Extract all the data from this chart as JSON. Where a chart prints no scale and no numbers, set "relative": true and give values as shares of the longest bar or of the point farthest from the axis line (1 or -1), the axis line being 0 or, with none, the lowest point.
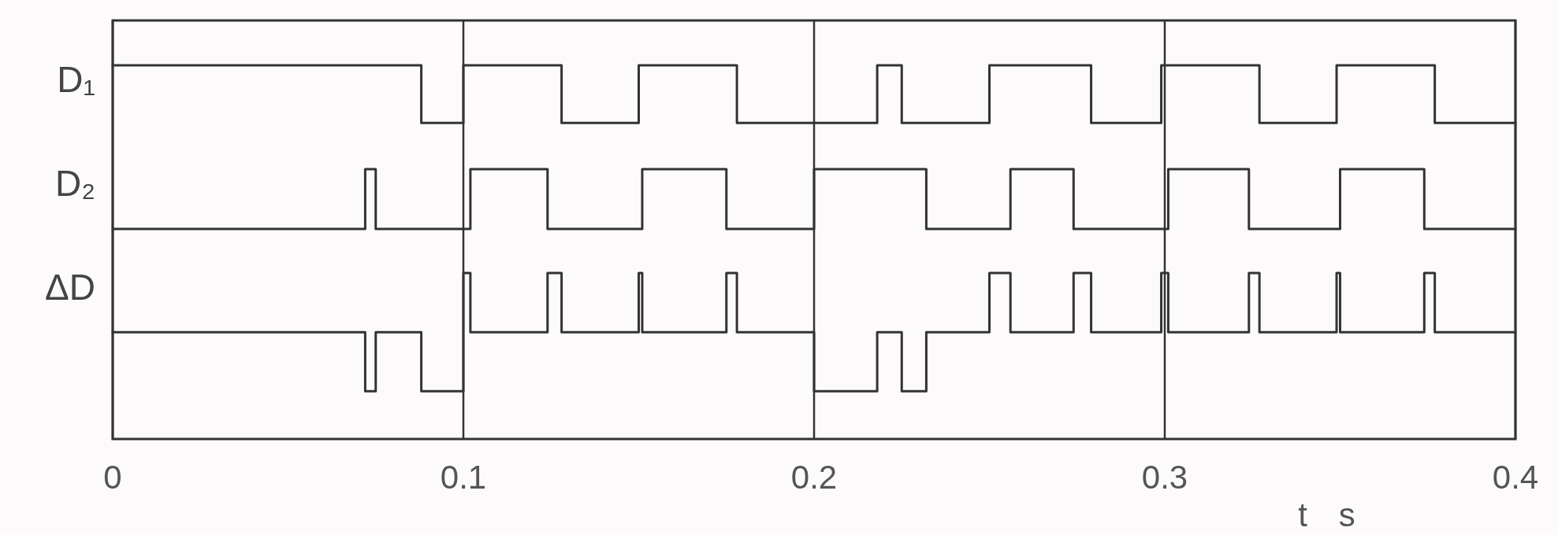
{
  "chart_data": {
    "type": "step",
    "relative": true,
    "xlabel": "t s",
    "xlim": [
      0,
      0.4
    ],
    "xticks": [
      0,
      0.1,
      0.2,
      0.3,
      0.4
    ],
    "grid": "x",
    "legend": false,
    "series": [
      {
        "name": "D₁",
        "color": "#333333",
        "x": [
          0,
          0.088,
          0.1,
          0.128,
          0.15,
          0.178,
          0.218,
          0.225,
          0.25,
          0.279,
          0.299,
          0.327,
          0.349,
          0.377,
          0.4
        ],
        "values": [
          1,
          0.846,
          1,
          0.846,
          1,
          0.846,
          1,
          0.846,
          1,
          0.846,
          1,
          0.846,
          1,
          0.846,
          0.846
        ]
      },
      {
        "name": "D₂",
        "color": "#333333",
        "x": [
          0,
          0.072,
          0.075,
          0.102,
          0.124,
          0.151,
          0.175,
          0.2,
          0.232,
          0.256,
          0.274,
          0.301,
          0.324,
          0.35,
          0.374,
          0.4
        ],
        "values": [
          0.562,
          0.722,
          0.562,
          0.722,
          0.562,
          0.722,
          0.562,
          0.722,
          0.562,
          0.722,
          0.562,
          0.722,
          0.562,
          0.722,
          0.562,
          0.562
        ]
      },
      {
        "name": "ΔD",
        "color": "#333333",
        "x": [
          0,
          0.072,
          0.075,
          0.088,
          0.1,
          0.102,
          0.124,
          0.128,
          0.15,
          0.151,
          0.175,
          0.178,
          0.2,
          0.218,
          0.225,
          0.232,
          0.25,
          0.256,
          0.274,
          0.279,
          0.299,
          0.301,
          0.324,
          0.327,
          0.349,
          0.35,
          0.374,
          0.377,
          0.4
        ],
        "values": [
          0.286,
          0.128,
          0.286,
          0.128,
          0.444,
          0.286,
          0.444,
          0.286,
          0.444,
          0.286,
          0.444,
          0.286,
          0.128,
          0.286,
          0.128,
          0.286,
          0.444,
          0.286,
          0.444,
          0.286,
          0.444,
          0.286,
          0.444,
          0.286,
          0.444,
          0.286,
          0.444,
          0.286,
          0.286
        ]
      }
    ]
  }
}
